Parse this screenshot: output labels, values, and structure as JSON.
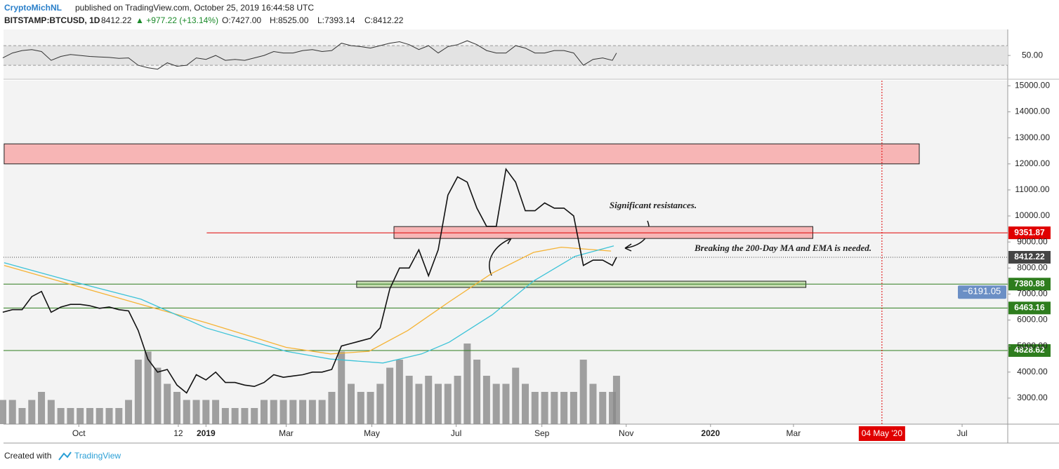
{
  "header": {
    "author": "CryptoMichNL",
    "published": "published on TradingView.com, October 25, 2019 16:44:58 UTC"
  },
  "symbol_line": {
    "symbol": "BITSTAMP:BTCUSD, 1D",
    "last": "8412.22",
    "change": "▲ +977.22 (+13.14%)",
    "open": "O:7427.00",
    "high": "H:8525.00",
    "low": "L:7393.14",
    "close": "C:8412.22"
  },
  "footer": {
    "created": "Created with",
    "brand": "TradingView"
  },
  "chart_data": {
    "type": "line",
    "color": "#111111",
    "x": [
      2,
      9,
      16,
      23,
      30,
      37,
      44,
      51,
      58,
      65,
      72,
      79,
      86,
      93,
      100,
      107,
      114,
      121,
      128,
      135,
      142,
      149,
      156,
      163,
      170,
      177,
      184,
      191,
      198,
      205,
      212,
      219,
      226,
      233,
      240,
      247,
      254,
      261,
      268,
      275,
      282,
      289,
      296,
      303,
      310,
      317,
      324,
      331,
      338,
      345,
      352,
      359,
      366,
      373,
      380,
      387,
      394,
      401,
      408,
      415,
      422,
      429,
      436,
      443,
      446
    ],
    "values": [
      6300,
      6400,
      6400,
      6900,
      7100,
      6300,
      6500,
      6600,
      6600,
      6550,
      6450,
      6500,
      6400,
      6350,
      5600,
      4500,
      4000,
      4100,
      3500,
      3200,
      3900,
      3700,
      4000,
      3600,
      3600,
      3500,
      3450,
      3600,
      3900,
      3800,
      3850,
      3900,
      4000,
      4000,
      4100,
      5000,
      5100,
      5200,
      5300,
      5700,
      7200,
      8000,
      8000,
      8700,
      7700,
      8700,
      10800,
      11500,
      11300,
      10300,
      9600,
      9600,
      11800,
      11300,
      10200,
      10200,
      10500,
      10300,
      10300,
      10000,
      8100,
      8300,
      8300,
      8100,
      8412.22
    ],
    "volume": {
      "color": "#8a8a8a",
      "values": [
        3,
        3,
        2,
        3,
        4,
        3,
        2,
        2,
        2,
        2,
        2,
        2,
        2,
        3,
        8,
        9,
        7,
        5,
        4,
        3,
        3,
        3,
        3,
        2,
        2,
        2,
        2,
        3,
        3,
        3,
        3,
        3,
        3,
        3,
        4,
        9,
        5,
        4,
        4,
        5,
        7,
        8,
        6,
        5,
        6,
        5,
        5,
        6,
        10,
        8,
        6,
        5,
        5,
        7,
        5,
        4,
        4,
        4,
        4,
        4,
        8,
        5,
        4,
        4,
        6
      ]
    },
    "moving_averages": [
      {
        "color": "#f5b335",
        "x": [
          3,
          102,
          149,
          207,
          239,
          267,
          295,
          325,
          356,
          386,
          406,
          442
        ],
        "values": [
          8100,
          6600,
          5900,
          4950,
          4700,
          4800,
          5600,
          6700,
          7800,
          8600,
          8800,
          8650
        ]
      },
      {
        "color": "#3cc3d8",
        "x": [
          3,
          51,
          102,
          149,
          207,
          239,
          277,
          305,
          325,
          356,
          386,
          416,
          444
        ],
        "values": [
          8200,
          7500,
          6800,
          5700,
          4800,
          4500,
          4350,
          4700,
          5150,
          6200,
          7500,
          8450,
          8850
        ]
      }
    ],
    "xlim": [
      0,
      729
    ],
    "ylim": [
      2000,
      15200
    ],
    "grid": false,
    "yticks": [
      {
        "value": 3000,
        "label": "3000.00"
      },
      {
        "value": 4000,
        "label": "4000.00"
      },
      {
        "value": 5000,
        "label": "5000.00"
      },
      {
        "value": 6000,
        "label": "6000.00"
      },
      {
        "value": 7000,
        "label": "7000.00"
      },
      {
        "value": 8000,
        "label": "8000.00"
      },
      {
        "value": 9000,
        "label": "9000.00"
      },
      {
        "value": 10000,
        "label": "10000.00"
      },
      {
        "value": 11000,
        "label": "11000.00"
      },
      {
        "value": 12000,
        "label": "12000.00"
      },
      {
        "value": 13000,
        "label": "13000.00"
      },
      {
        "value": 14000,
        "label": "14000.00"
      },
      {
        "value": 15000,
        "label": "15000.00"
      }
    ],
    "xticks": [
      {
        "value": 57,
        "label": "Oct"
      },
      {
        "value": 129,
        "label": "12"
      },
      {
        "value": 149,
        "label": "2019"
      },
      {
        "value": 207,
        "label": "Mar"
      },
      {
        "value": 269,
        "label": "May"
      },
      {
        "value": 330,
        "label": "Jul"
      },
      {
        "value": 392,
        "label": "Sep"
      },
      {
        "value": 453,
        "label": "Nov"
      },
      {
        "value": 514,
        "label": "2020"
      },
      {
        "value": 574,
        "label": "Mar"
      },
      {
        "value": 696,
        "label": "Jul"
      }
    ],
    "zones": [
      {
        "x": [
          3,
          665
        ],
        "y": [
          12000,
          12770
        ],
        "color": "#f7b5b5"
      },
      {
        "x": [
          285,
          588
        ],
        "y": [
          9135,
          9592
        ],
        "color": "#f7b5b5"
      },
      {
        "x": [
          258,
          583
        ],
        "y": [
          7252,
          7494
        ],
        "color": "#c5dcb0"
      }
    ],
    "levels": [
      {
        "value": 9351.87,
        "color": "#e00000",
        "start": 147
      },
      {
        "value": 8412.22,
        "color": "#444444",
        "dotted": true
      },
      {
        "value": 7380.88,
        "color": "#2e7d1e"
      },
      {
        "value": 6463.16,
        "color": "#2e7d1e"
      },
      {
        "value": 4828.62,
        "color": "#2e7d1e"
      }
    ],
    "marker": {
      "x": 638,
      "label": "04 May '20",
      "color": "#e00000"
    },
    "measure_label": "−6191.05",
    "annotations": [
      "Significant resistances.",
      "Breaking the 200-Day MA and EMA is needed."
    ],
    "rsi": {
      "color": "#333333",
      "values": [
        45,
        55,
        60,
        62,
        58,
        40,
        48,
        52,
        50,
        48,
        47,
        46,
        44,
        45,
        30,
        25,
        22,
        35,
        28,
        30,
        45,
        42,
        50,
        40,
        42,
        40,
        45,
        50,
        58,
        55,
        55,
        60,
        62,
        58,
        60,
        75,
        70,
        68,
        65,
        70,
        75,
        78,
        72,
        62,
        70,
        55,
        68,
        72,
        80,
        72,
        60,
        55,
        55,
        70,
        65,
        55,
        55,
        60,
        60,
        55,
        30,
        42,
        45,
        40,
        55
      ],
      "ylim": [
        3,
        103
      ],
      "bands": [
        30,
        70
      ],
      "yticks": [
        {
          "value": 50,
          "label": "50.00"
        }
      ]
    }
  }
}
